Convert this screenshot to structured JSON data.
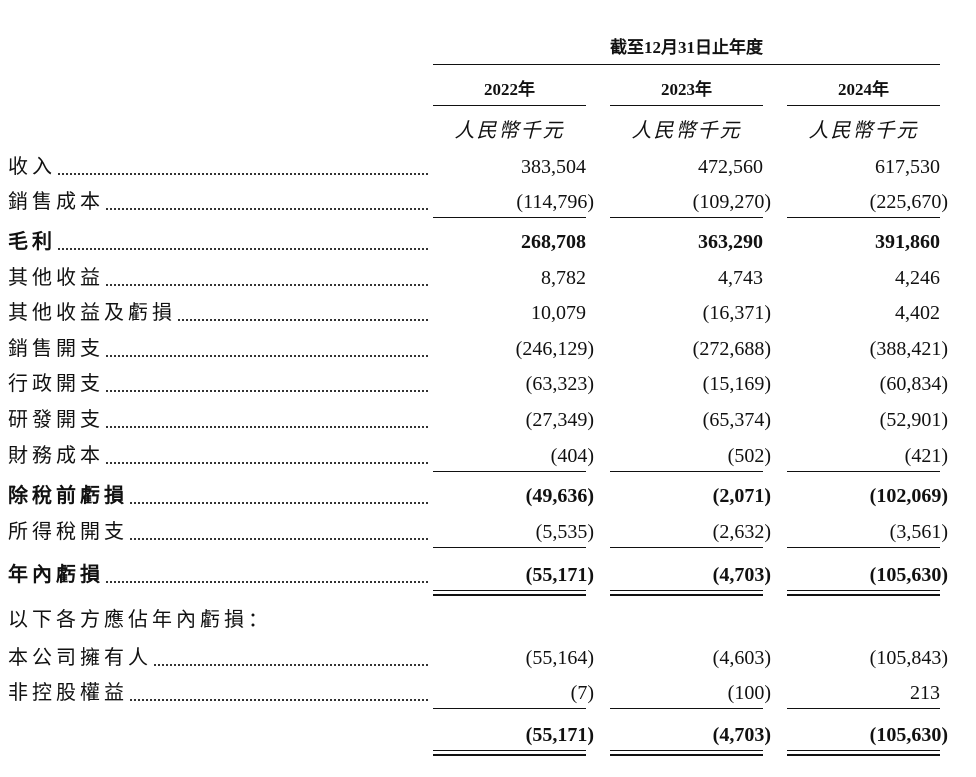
{
  "header": {
    "period": "截至12月31日止年度",
    "years": [
      "2022年",
      "2023年",
      "2024年"
    ],
    "units": [
      "人民幣千元",
      "人民幣千元",
      "人民幣千元"
    ]
  },
  "table": {
    "rows": [
      {
        "label": "收入",
        "values": [
          "383,504",
          "472,560",
          "617,530"
        ]
      },
      {
        "label": "銷售成本",
        "values": [
          "(114,796)",
          "(109,270)",
          "(225,670)"
        ],
        "rule": "single"
      },
      {
        "label": "毛利",
        "values": [
          "268,708",
          "363,290",
          "391,860"
        ],
        "bold": true
      },
      {
        "label": "其他收益",
        "values": [
          "8,782",
          "4,743",
          "4,246"
        ]
      },
      {
        "label": "其他收益及虧損",
        "values": [
          "10,079",
          "(16,371)",
          "4,402"
        ]
      },
      {
        "label": "銷售開支",
        "values": [
          "(246,129)",
          "(272,688)",
          "(388,421)"
        ]
      },
      {
        "label": "行政開支",
        "values": [
          "(63,323)",
          "(15,169)",
          "(60,834)"
        ]
      },
      {
        "label": "研發開支",
        "values": [
          "(27,349)",
          "(65,374)",
          "(52,901)"
        ]
      },
      {
        "label": "財務成本",
        "values": [
          "(404)",
          "(502)",
          "(421)"
        ],
        "rule": "single"
      },
      {
        "label": "除稅前虧損",
        "values": [
          "(49,636)",
          "(2,071)",
          "(102,069)"
        ],
        "bold": true
      },
      {
        "label": "所得稅開支",
        "values": [
          "(5,535)",
          "(2,632)",
          "(3,561)"
        ],
        "rule": "single"
      },
      {
        "label": "年內虧損",
        "values": [
          "(55,171)",
          "(4,703)",
          "(105,630)"
        ],
        "bold": true,
        "rule": "double"
      },
      {
        "label": "以下各方應佔年內虧損："
      },
      {
        "label": "本公司擁有人",
        "values": [
          "(55,164)",
          "(4,603)",
          "(105,843)"
        ]
      },
      {
        "label": "非控股權益",
        "values": [
          "(7)",
          "(100)",
          "213"
        ],
        "rule": "single"
      },
      {
        "values": [
          "(55,171)",
          "(4,703)",
          "(105,630)"
        ],
        "bold": true,
        "rule": "double"
      }
    ]
  }
}
